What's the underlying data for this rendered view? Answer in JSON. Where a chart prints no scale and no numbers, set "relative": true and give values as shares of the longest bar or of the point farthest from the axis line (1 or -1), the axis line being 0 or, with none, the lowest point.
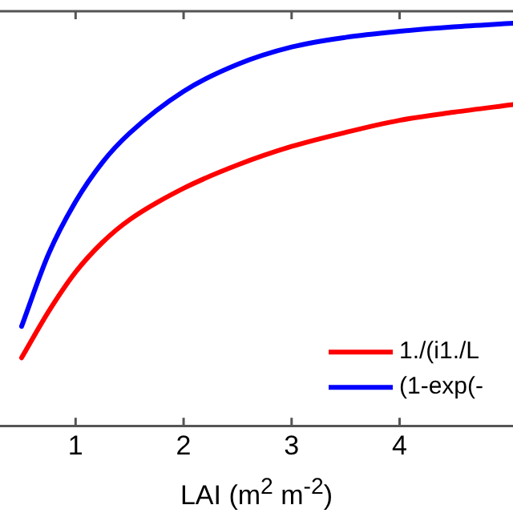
{
  "chart_data": {
    "type": "line",
    "relative": true,
    "xlabel": "LAI (m$^{2}$ m$^{-2}$)",
    "xlim": [
      0.3,
      5.05
    ],
    "xticks": [
      1,
      2,
      3,
      4
    ],
    "x": [
      0.5,
      0.75,
      1,
      1.25,
      1.5,
      2,
      2.5,
      3,
      3.5,
      4,
      4.5,
      5.05
    ],
    "legend": "bottom right",
    "grid": false,
    "marker": "none",
    "line_style": "solid",
    "series": [
      {
        "name": "1./(i1./L",
        "color": "#ff0000",
        "values": [
          0.169,
          0.284,
          0.382,
          0.456,
          0.512,
          0.59,
          0.648,
          0.694,
          0.729,
          0.759,
          0.779,
          0.798
        ]
      },
      {
        "name": "(1-exp(-",
        "color": "#0000ff",
        "values": [
          0.247,
          0.427,
          0.557,
          0.655,
          0.727,
          0.831,
          0.898,
          0.941,
          0.965,
          0.98,
          0.991,
          1
        ]
      }
    ]
  }
}
